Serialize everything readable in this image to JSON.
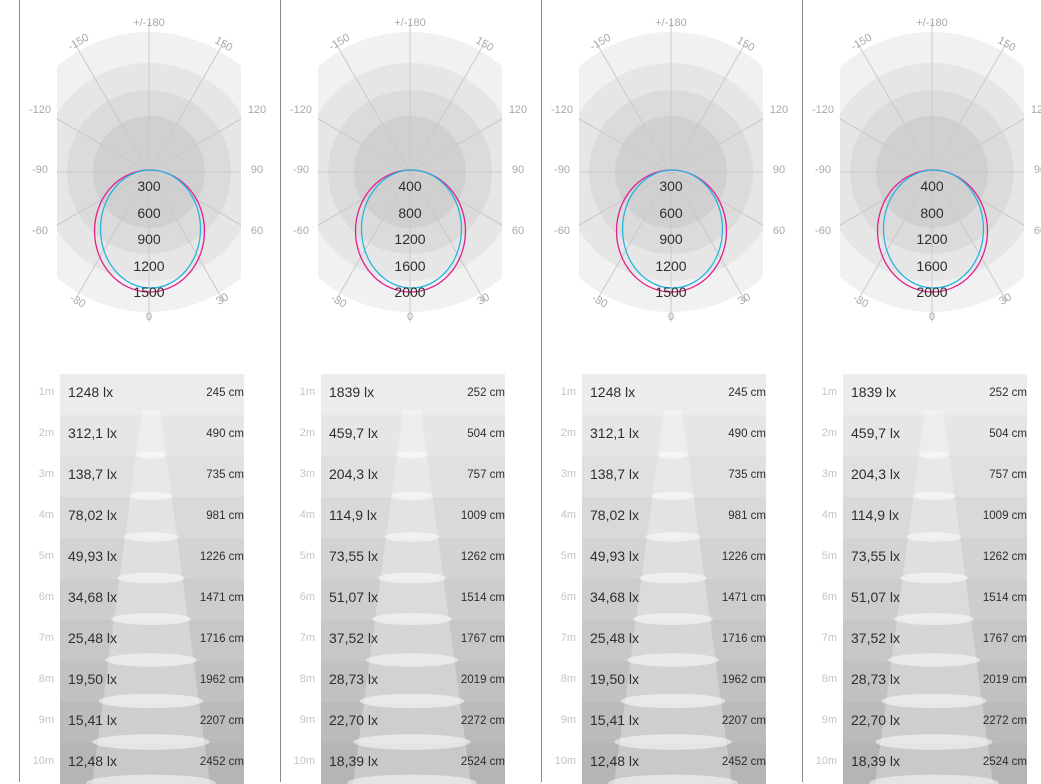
{
  "polar_angle_labels": {
    "top": "+/-180",
    "upper_left": "-150",
    "upper_right": "150",
    "left_upper": "-120",
    "right_upper": "120",
    "left_mid": "-90",
    "right_mid": "90",
    "left_lower": "-60",
    "right_lower": "60",
    "lower_left": "-30",
    "lower_right": "30",
    "bottom": "0"
  },
  "colors": {
    "curve_magenta": "#e0208a",
    "curve_cyan": "#27b5e0",
    "rings": [
      "#f1f1f1",
      "#e6e6e6",
      "#dbdbdb",
      "#d0d0d0"
    ]
  },
  "panels": [
    {
      "intensity_scale": [
        "300",
        "600",
        "900",
        "1200",
        "1500"
      ],
      "rows": [
        {
          "distance": "1m",
          "illuminance": "1248 lx",
          "diameter": "245 cm"
        },
        {
          "distance": "2m",
          "illuminance": "312,1 lx",
          "diameter": "490 cm"
        },
        {
          "distance": "3m",
          "illuminance": "138,7 lx",
          "diameter": "735 cm"
        },
        {
          "distance": "4m",
          "illuminance": "78,02 lx",
          "diameter": "981 cm"
        },
        {
          "distance": "5m",
          "illuminance": "49,93 lx",
          "diameter": "1226 cm"
        },
        {
          "distance": "6m",
          "illuminance": "34,68 lx",
          "diameter": "1471 cm"
        },
        {
          "distance": "7m",
          "illuminance": "25,48 lx",
          "diameter": "1716 cm"
        },
        {
          "distance": "8m",
          "illuminance": "19,50 lx",
          "diameter": "1962 cm"
        },
        {
          "distance": "9m",
          "illuminance": "15,41 lx",
          "diameter": "2207 cm"
        },
        {
          "distance": "10m",
          "illuminance": "12,48 lx",
          "diameter": "2452 cm"
        }
      ]
    },
    {
      "intensity_scale": [
        "400",
        "800",
        "1200",
        "1600",
        "2000"
      ],
      "rows": [
        {
          "distance": "1m",
          "illuminance": "1839 lx",
          "diameter": "252 cm"
        },
        {
          "distance": "2m",
          "illuminance": "459,7 lx",
          "diameter": "504 cm"
        },
        {
          "distance": "3m",
          "illuminance": "204,3 lx",
          "diameter": "757 cm"
        },
        {
          "distance": "4m",
          "illuminance": "114,9 lx",
          "diameter": "1009 cm"
        },
        {
          "distance": "5m",
          "illuminance": "73,55 lx",
          "diameter": "1262 cm"
        },
        {
          "distance": "6m",
          "illuminance": "51,07 lx",
          "diameter": "1514 cm"
        },
        {
          "distance": "7m",
          "illuminance": "37,52 lx",
          "diameter": "1767 cm"
        },
        {
          "distance": "8m",
          "illuminance": "28,73 lx",
          "diameter": "2019 cm"
        },
        {
          "distance": "9m",
          "illuminance": "22,70 lx",
          "diameter": "2272 cm"
        },
        {
          "distance": "10m",
          "illuminance": "18,39 lx",
          "diameter": "2524 cm"
        }
      ]
    },
    {
      "intensity_scale": [
        "300",
        "600",
        "900",
        "1200",
        "1500"
      ],
      "rows": [
        {
          "distance": "1m",
          "illuminance": "1248 lx",
          "diameter": "245 cm"
        },
        {
          "distance": "2m",
          "illuminance": "312,1 lx",
          "diameter": "490 cm"
        },
        {
          "distance": "3m",
          "illuminance": "138,7 lx",
          "diameter": "735 cm"
        },
        {
          "distance": "4m",
          "illuminance": "78,02 lx",
          "diameter": "981 cm"
        },
        {
          "distance": "5m",
          "illuminance": "49,93 lx",
          "diameter": "1226 cm"
        },
        {
          "distance": "6m",
          "illuminance": "34,68 lx",
          "diameter": "1471 cm"
        },
        {
          "distance": "7m",
          "illuminance": "25,48 lx",
          "diameter": "1716 cm"
        },
        {
          "distance": "8m",
          "illuminance": "19,50 lx",
          "diameter": "1962 cm"
        },
        {
          "distance": "9m",
          "illuminance": "15,41 lx",
          "diameter": "2207 cm"
        },
        {
          "distance": "10m",
          "illuminance": "12,48 lx",
          "diameter": "2452 cm"
        }
      ]
    },
    {
      "intensity_scale": [
        "400",
        "800",
        "1200",
        "1600",
        "2000"
      ],
      "rows": [
        {
          "distance": "1m",
          "illuminance": "1839 lx",
          "diameter": "252 cm"
        },
        {
          "distance": "2m",
          "illuminance": "459,7 lx",
          "diameter": "504 cm"
        },
        {
          "distance": "3m",
          "illuminance": "204,3 lx",
          "diameter": "757 cm"
        },
        {
          "distance": "4m",
          "illuminance": "114,9 lx",
          "diameter": "1009 cm"
        },
        {
          "distance": "5m",
          "illuminance": "73,55 lx",
          "diameter": "1262 cm"
        },
        {
          "distance": "6m",
          "illuminance": "51,07 lx",
          "diameter": "1514 cm"
        },
        {
          "distance": "7m",
          "illuminance": "37,52 lx",
          "diameter": "1767 cm"
        },
        {
          "distance": "8m",
          "illuminance": "28,73 lx",
          "diameter": "2019 cm"
        },
        {
          "distance": "9m",
          "illuminance": "22,70 lx",
          "diameter": "2272 cm"
        },
        {
          "distance": "10m",
          "illuminance": "18,39 lx",
          "diameter": "2524 cm"
        }
      ]
    }
  ]
}
